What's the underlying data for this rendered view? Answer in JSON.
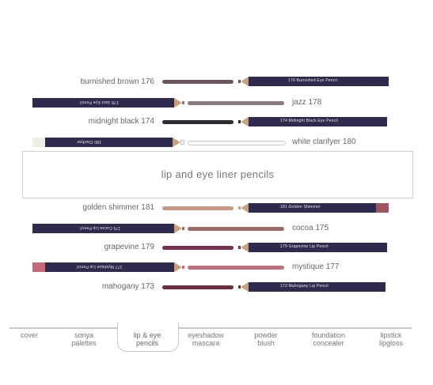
{
  "title": "lip and eye liner pencils",
  "colors": {
    "barrel": "#2f2b4e",
    "wood": "#c9a27d",
    "label": "#666666",
    "border": "#cfcfcf"
  },
  "products": [
    {
      "name": "burnished brown 176",
      "imprint": "176 Burnished Eye Pencil",
      "color": "#6f5560"
    },
    {
      "name": "jazz 178",
      "imprint": "178 Jazz Eye Pencil",
      "color": "#8a7a82"
    },
    {
      "name": "midnight black 174",
      "imprint": "174 Midnight Black Eye Pencil",
      "color": "#2b2c30"
    },
    {
      "name": "white clarifyer 180",
      "imprint": "180 Clarifyer",
      "color": "#f2f2ee"
    },
    {
      "name": "golden shimmer 181",
      "imprint": "181 Golden Shimmer",
      "color": "#c99a82"
    },
    {
      "name": "cocoa 175",
      "imprint": "175 Cocoa Lip Pencil",
      "color": "#9b6b66"
    },
    {
      "name": "grapevine 179",
      "imprint": "179 Grapevine Lip Pencil",
      "color": "#7a2d4c"
    },
    {
      "name": "mystique 177",
      "imprint": "177 Mystique Lip Pencil",
      "color": "#c06f7c"
    },
    {
      "name": "mahogany 173",
      "imprint": "173 Mahogany Lip Pencil",
      "color": "#6d2e3b"
    }
  ],
  "nav": [
    {
      "line1": "cover",
      "line2": ""
    },
    {
      "line1": "sonya",
      "line2": "palettes"
    },
    {
      "line1": "lip & eye",
      "line2": "pencils"
    },
    {
      "line1": "eyeshadow",
      "line2": "mascara"
    },
    {
      "line1": "powder",
      "line2": "blush"
    },
    {
      "line1": "foundation",
      "line2": "concealer"
    },
    {
      "line1": "lipstick",
      "line2": "lipgloss"
    }
  ]
}
